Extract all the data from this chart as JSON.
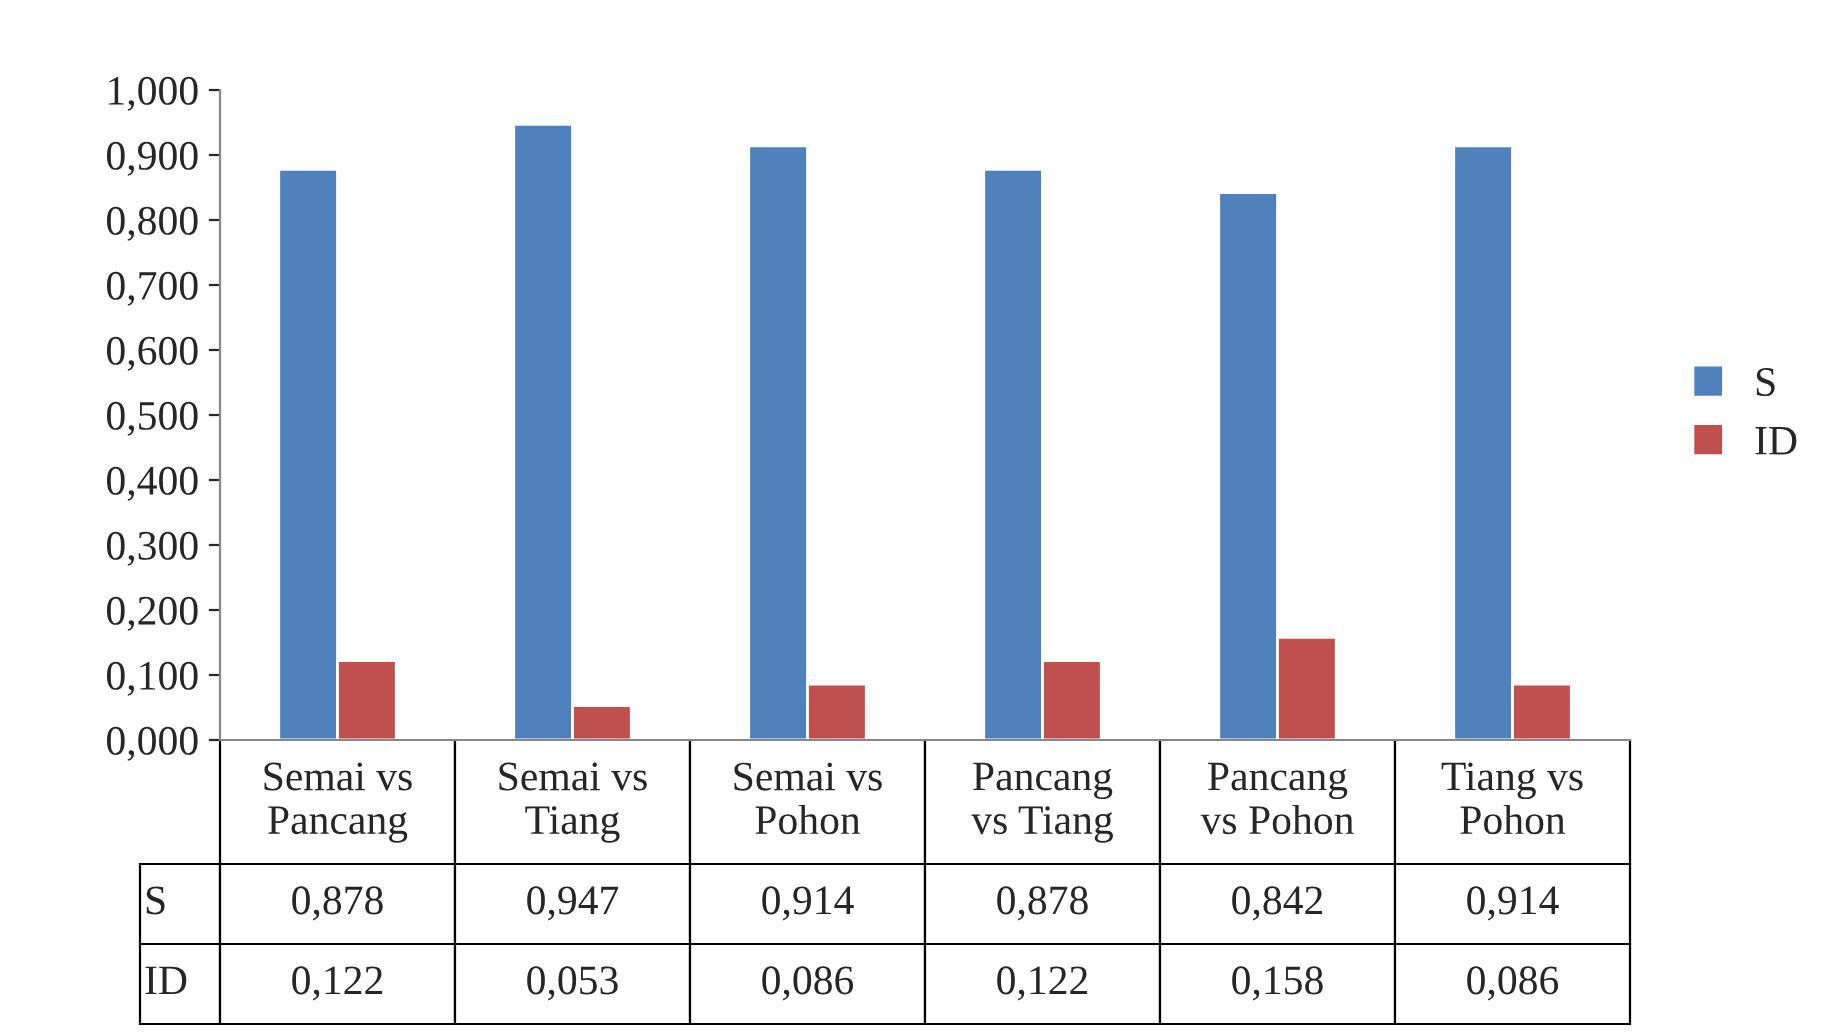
{
  "chart_data": {
    "type": "bar",
    "categories": [
      "Semai vs\nPancang",
      "Semai vs\nTiang",
      "Semai vs\nPohon",
      "Pancang\nvs Tiang",
      "Pancang\nvs Pohon",
      "Tiang vs\nPohon"
    ],
    "series": [
      {
        "name": "S",
        "color": "#4f81bd",
        "values": [
          0.878,
          0.947,
          0.914,
          0.878,
          0.842,
          0.914
        ],
        "value_labels": [
          "0,878",
          "0,947",
          "0,914",
          "0,878",
          "0,842",
          "0,914"
        ]
      },
      {
        "name": "ID",
        "color": "#c0504d",
        "values": [
          0.122,
          0.053,
          0.086,
          0.122,
          0.158,
          0.086
        ],
        "value_labels": [
          "0,122",
          "0,053",
          "0,086",
          "0,122",
          "0,158",
          "0,086"
        ]
      }
    ],
    "ylim": [
      0,
      1
    ],
    "yticks": [
      {
        "value": 0,
        "label": "0,000"
      },
      {
        "value": 0.1,
        "label": "0,100"
      },
      {
        "value": 0.2,
        "label": "0,200"
      },
      {
        "value": 0.3,
        "label": "0,300"
      },
      {
        "value": 0.4,
        "label": "0,400"
      },
      {
        "value": 0.5,
        "label": "0,500"
      },
      {
        "value": 0.6,
        "label": "0,600"
      },
      {
        "value": 0.7,
        "label": "0,700"
      },
      {
        "value": 0.8,
        "label": "0,800"
      },
      {
        "value": 0.9,
        "label": "0,900"
      },
      {
        "value": 1,
        "label": "1,000"
      }
    ],
    "legend": "right",
    "grid": false
  }
}
